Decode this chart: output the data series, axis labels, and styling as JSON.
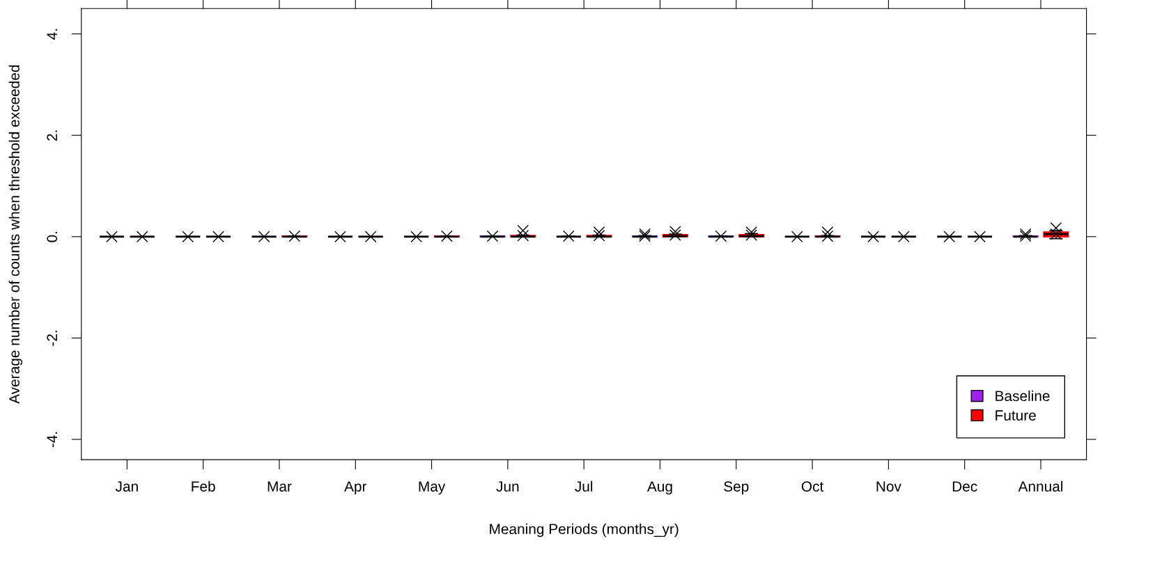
{
  "chart_data": {
    "type": "box",
    "xlabel": "Meaning Periods (months_yr)",
    "ylabel": "Average number of counts when threshold exceeded",
    "categories": [
      "Jan",
      "Feb",
      "Mar",
      "Apr",
      "May",
      "Jun",
      "Jul",
      "Aug",
      "Sep",
      "Oct",
      "Nov",
      "Dec",
      "Annual"
    ],
    "ylim": [
      -4.4,
      4.5
    ],
    "yticks": [
      {
        "value": -4,
        "label": "-4."
      },
      {
        "value": -2,
        "label": "-2."
      },
      {
        "value": 0,
        "label": "0."
      },
      {
        "value": 2,
        "label": "2."
      },
      {
        "value": 4,
        "label": "4."
      }
    ],
    "legend": "bottom right",
    "grid": false,
    "marker": "cross",
    "series": [
      {
        "name": "Baseline",
        "color": "#a020f0",
        "boxes": [
          {
            "low": 0,
            "q1": 0,
            "median": 0,
            "q3": 0,
            "high": 0,
            "mean": 0
          },
          {
            "low": 0,
            "q1": 0,
            "median": 0,
            "q3": 0,
            "high": 0,
            "mean": 0
          },
          {
            "low": 0,
            "q1": 0,
            "median": 0,
            "q3": 0,
            "high": 0,
            "mean": 0
          },
          {
            "low": 0,
            "q1": 0,
            "median": 0,
            "q3": 0,
            "high": 0,
            "mean": 0
          },
          {
            "low": 0,
            "q1": 0,
            "median": 0,
            "q3": 0,
            "high": 0,
            "mean": 0
          },
          {
            "low": 0,
            "q1": 0,
            "median": 0,
            "q3": 0.01,
            "high": 0.01,
            "mean": 0.01
          },
          {
            "low": 0,
            "q1": 0,
            "median": 0,
            "q3": 0,
            "high": 0.01,
            "mean": 0.01
          },
          {
            "low": 0,
            "q1": 0,
            "median": 0,
            "q3": 0.01,
            "high": 0.02,
            "mean": 0.01,
            "outliers": [
              0.05
            ]
          },
          {
            "low": 0,
            "q1": 0,
            "median": 0,
            "q3": 0.01,
            "high": 0.01,
            "mean": 0.01
          },
          {
            "low": 0,
            "q1": 0,
            "median": 0,
            "q3": 0,
            "high": 0,
            "mean": 0
          },
          {
            "low": 0,
            "q1": 0,
            "median": 0,
            "q3": 0,
            "high": 0,
            "mean": 0
          },
          {
            "low": 0,
            "q1": 0,
            "median": 0,
            "q3": 0,
            "high": 0,
            "mean": 0
          },
          {
            "low": 0,
            "q1": 0,
            "median": 0,
            "q3": 0.01,
            "high": 0.02,
            "mean": 0.01,
            "outliers": [
              0.05
            ]
          }
        ]
      },
      {
        "name": "Future",
        "color": "#ff0000",
        "boxes": [
          {
            "low": 0,
            "q1": 0,
            "median": 0,
            "q3": 0,
            "high": 0,
            "mean": 0
          },
          {
            "low": 0,
            "q1": 0,
            "median": 0,
            "q3": 0,
            "high": 0,
            "mean": 0
          },
          {
            "low": 0,
            "q1": 0,
            "median": 0,
            "q3": 0.01,
            "high": 0.01,
            "mean": 0.01
          },
          {
            "low": 0,
            "q1": 0,
            "median": 0,
            "q3": 0,
            "high": 0,
            "mean": 0
          },
          {
            "low": 0,
            "q1": 0,
            "median": 0,
            "q3": 0.01,
            "high": 0.01,
            "mean": 0.01
          },
          {
            "low": 0,
            "q1": 0,
            "median": 0,
            "q3": 0.02,
            "high": 0.03,
            "mean": 0.02,
            "outliers": [
              0.12
            ]
          },
          {
            "low": 0,
            "q1": 0,
            "median": 0,
            "q3": 0.02,
            "high": 0.03,
            "mean": 0.02,
            "outliers": [
              0.09
            ]
          },
          {
            "low": 0,
            "q1": 0,
            "median": 0.01,
            "q3": 0.04,
            "high": 0.05,
            "mean": 0.03,
            "outliers": [
              0.1
            ]
          },
          {
            "low": 0,
            "q1": 0,
            "median": 0.01,
            "q3": 0.04,
            "high": 0.06,
            "mean": 0.03,
            "outliers": [
              0.09
            ]
          },
          {
            "low": 0,
            "q1": 0,
            "median": 0,
            "q3": 0.01,
            "high": 0.02,
            "mean": 0.01,
            "outliers": [
              0.09
            ]
          },
          {
            "low": 0,
            "q1": 0,
            "median": 0,
            "q3": 0,
            "high": 0,
            "mean": 0
          },
          {
            "low": 0,
            "q1": 0,
            "median": 0,
            "q3": 0,
            "high": 0,
            "mean": 0
          },
          {
            "low": -0.04,
            "q1": 0,
            "median": 0.05,
            "q3": 0.09,
            "high": 0.12,
            "mean": 0.05,
            "outliers": [
              0.17
            ]
          }
        ]
      }
    ]
  }
}
